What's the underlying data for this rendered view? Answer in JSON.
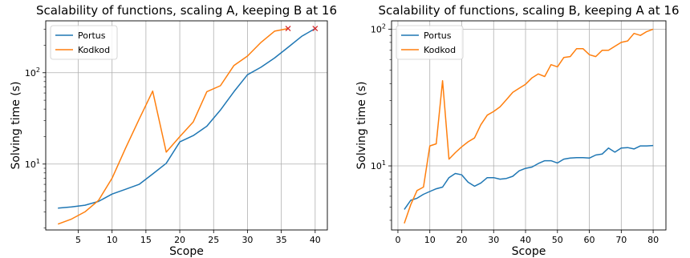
{
  "chart_data": [
    {
      "type": "line",
      "title": "Scalability of functions, scaling A, keeping B at 16",
      "xlabel": "Scope",
      "ylabel": "Solving time (s)",
      "yscale": "log",
      "xlim": [
        0.2,
        41.8
      ],
      "ylim": [
        1.9,
        370
      ],
      "xticks": [
        5,
        10,
        15,
        20,
        25,
        30,
        35,
        40
      ],
      "yticks": [
        {
          "value": 10,
          "label": "10^1",
          "base": "10",
          "exp": "1"
        },
        {
          "value": 100,
          "label": "10^2",
          "base": "10",
          "exp": "2"
        }
      ],
      "grid": true,
      "legend": "top-left",
      "series": [
        {
          "name": "Portus",
          "color": "#1f77b4",
          "x": [
            2,
            4,
            6,
            8,
            10,
            12,
            14,
            16,
            18,
            20,
            22,
            24,
            26,
            28,
            30,
            32,
            34,
            36,
            38,
            40
          ],
          "y": [
            3.3,
            3.4,
            3.55,
            3.9,
            4.7,
            5.3,
            6.0,
            7.8,
            10.2,
            17.5,
            20.5,
            26,
            39,
            62,
            95,
            115,
            145,
            190,
            250,
            305
          ]
        },
        {
          "name": "Kodkod",
          "color": "#ff7f0e",
          "x": [
            2,
            4,
            6,
            8,
            10,
            12,
            14,
            16,
            18,
            20,
            22,
            24,
            26,
            28,
            30,
            32,
            34,
            36
          ],
          "y": [
            2.2,
            2.5,
            3.0,
            4.0,
            7.0,
            15,
            31,
            63,
            13.5,
            20,
            29,
            62,
            72,
            120,
            152,
            215,
            285,
            305
          ]
        }
      ],
      "markers": [
        {
          "x": 36,
          "y": 305,
          "symbol": "x",
          "color": "#d62728"
        },
        {
          "x": 40,
          "y": 305,
          "symbol": "x",
          "color": "#d62728"
        }
      ]
    },
    {
      "type": "line",
      "title": "Scalability of functions, scaling B, keeping A at 16",
      "xlabel": "Scope",
      "ylabel": "Solving time (s)",
      "yscale": "log",
      "xlim": [
        -2,
        84
      ],
      "ylim": [
        3.4,
        115
      ],
      "xticks": [
        0,
        10,
        20,
        30,
        40,
        50,
        60,
        70,
        80
      ],
      "yticks": [
        {
          "value": 10,
          "label": "10^1",
          "base": "10",
          "exp": "1"
        },
        {
          "value": 100,
          "label": "10^2",
          "base": "10",
          "exp": "2"
        }
      ],
      "grid": true,
      "legend": "top-left",
      "series": [
        {
          "name": "Portus",
          "color": "#1f77b4",
          "x": [
            2,
            4,
            6,
            8,
            10,
            12,
            14,
            16,
            18,
            20,
            22,
            24,
            26,
            28,
            30,
            32,
            34,
            36,
            38,
            40,
            42,
            44,
            46,
            48,
            50,
            52,
            54,
            56,
            58,
            60,
            62,
            64,
            66,
            68,
            70,
            72,
            74,
            76,
            78,
            80
          ],
          "y": [
            4.8,
            5.6,
            5.8,
            6.2,
            6.5,
            6.8,
            7.0,
            8.2,
            8.8,
            8.6,
            7.6,
            7.1,
            7.5,
            8.2,
            8.2,
            8.0,
            8.1,
            8.4,
            9.2,
            9.6,
            9.8,
            10.4,
            10.9,
            10.9,
            10.5,
            11.2,
            11.4,
            11.5,
            11.5,
            11.4,
            12.0,
            12.2,
            13.5,
            12.6,
            13.5,
            13.6,
            13.3,
            14.0,
            14.0,
            14.1
          ]
        },
        {
          "name": "Kodkod",
          "color": "#ff7f0e",
          "x": [
            2,
            4,
            6,
            8,
            10,
            12,
            14,
            16,
            18,
            20,
            22,
            24,
            26,
            28,
            30,
            32,
            34,
            36,
            38,
            40,
            42,
            44,
            46,
            48,
            50,
            52,
            54,
            56,
            58,
            60,
            62,
            64,
            66,
            68,
            70,
            72,
            74,
            76,
            78,
            80
          ],
          "y": [
            3.8,
            5.2,
            6.6,
            7.0,
            14,
            14.5,
            42,
            11.2,
            12.5,
            13.8,
            15.0,
            16.0,
            20.0,
            23.5,
            25.0,
            27.0,
            30.5,
            34.5,
            37.0,
            39.5,
            44.0,
            47.0,
            45.0,
            55.0,
            53.0,
            62.0,
            63.0,
            72.0,
            72.0,
            65.0,
            63.0,
            70.0,
            70.0,
            75.0,
            80.0,
            82.0,
            93.0,
            90.0,
            96.0,
            100.0
          ]
        }
      ]
    }
  ]
}
